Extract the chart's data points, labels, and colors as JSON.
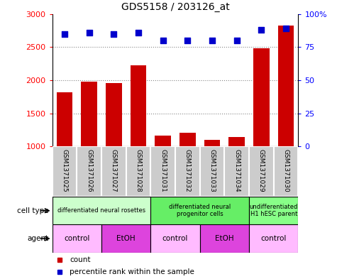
{
  "title": "GDS5158 / 203126_at",
  "samples": [
    "GSM1371025",
    "GSM1371026",
    "GSM1371027",
    "GSM1371028",
    "GSM1371031",
    "GSM1371032",
    "GSM1371033",
    "GSM1371034",
    "GSM1371029",
    "GSM1371030"
  ],
  "counts": [
    1820,
    1980,
    1960,
    2220,
    1160,
    1210,
    1100,
    1140,
    2480,
    2830
  ],
  "percentiles": [
    85,
    86,
    85,
    86,
    80,
    80,
    80,
    80,
    88,
    89
  ],
  "ylim_left": [
    1000,
    3000
  ],
  "ylim_right": [
    0,
    100
  ],
  "yticks_left": [
    1000,
    1500,
    2000,
    2500,
    3000
  ],
  "yticks_right": [
    0,
    25,
    50,
    75,
    100
  ],
  "bar_color": "#cc0000",
  "dot_color": "#0000cc",
  "cell_type_groups": [
    {
      "label": "differentiated neural rosettes",
      "start": 0,
      "end": 4,
      "color": "#ccffcc"
    },
    {
      "label": "differentiated neural\nprogenitor cells",
      "start": 4,
      "end": 8,
      "color": "#66ee66"
    },
    {
      "label": "undifferentiated\nH1 hESC parent",
      "start": 8,
      "end": 10,
      "color": "#88ff88"
    }
  ],
  "agent_groups": [
    {
      "label": "control",
      "start": 0,
      "end": 2,
      "color": "#ffbbff"
    },
    {
      "label": "EtOH",
      "start": 2,
      "end": 4,
      "color": "#dd44dd"
    },
    {
      "label": "control",
      "start": 4,
      "end": 6,
      "color": "#ffbbff"
    },
    {
      "label": "EtOH",
      "start": 6,
      "end": 8,
      "color": "#dd44dd"
    },
    {
      "label": "control",
      "start": 8,
      "end": 10,
      "color": "#ffbbff"
    }
  ],
  "cell_type_label": "cell type",
  "agent_label": "agent",
  "legend_count_label": "count",
  "legend_percentile_label": "percentile rank within the sample",
  "grid_color": "#888888",
  "bg_color": "#ffffff",
  "bar_width": 0.65,
  "dot_size": 35,
  "xtick_bg": "#cccccc",
  "xtick_sep_color": "#ffffff"
}
